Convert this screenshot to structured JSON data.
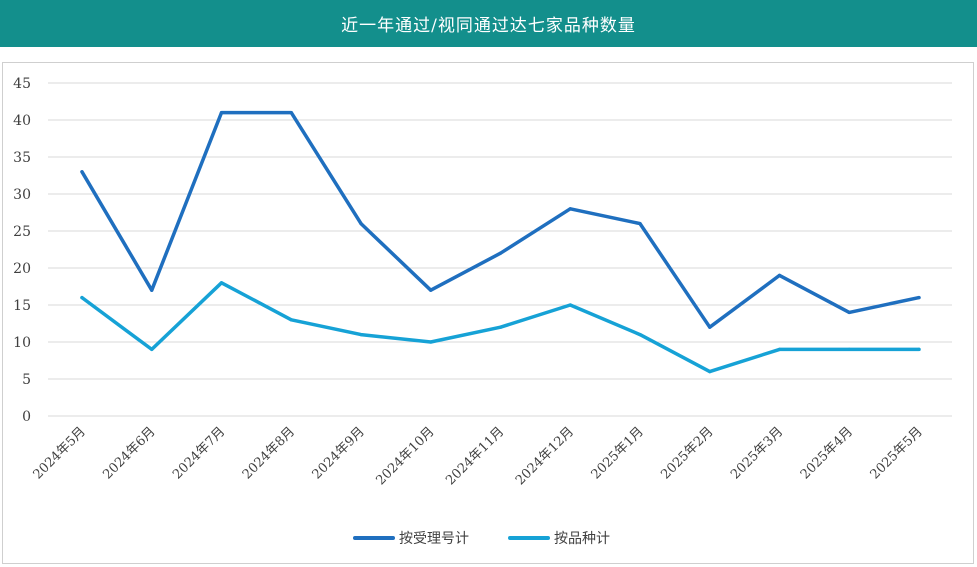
{
  "colors": {
    "header_bg": "#138F8C",
    "series_1": "#1F6FBF",
    "series_2": "#16A2D6",
    "grid": "#d9d9d9",
    "axis_text": "#404040"
  },
  "chart_data": {
    "type": "line",
    "title": "近一年通过/视同通过达七家品种数量",
    "xlabel": "",
    "ylabel": "",
    "ylim": [
      0,
      45
    ],
    "yticks": [
      "0",
      "5",
      "10",
      "15",
      "20",
      "25",
      "30",
      "35",
      "40",
      "45"
    ],
    "categories": [
      "2024年5月",
      "2024年6月",
      "2024年7月",
      "2024年8月",
      "2024年9月",
      "2024年10月",
      "2024年11月",
      "2024年12月",
      "2025年1月",
      "2025年2月",
      "2025年3月",
      "2025年4月",
      "2025年5月"
    ],
    "series": [
      {
        "name": "按受理号计",
        "values": [
          33,
          17,
          41,
          41,
          26,
          17,
          22,
          28,
          26,
          12,
          19,
          14,
          16
        ]
      },
      {
        "name": "按品种计",
        "values": [
          16,
          9,
          18,
          13,
          11,
          10,
          12,
          15,
          11,
          6,
          9,
          9,
          9
        ]
      }
    ],
    "grid": true,
    "legend": "bottom-center"
  }
}
